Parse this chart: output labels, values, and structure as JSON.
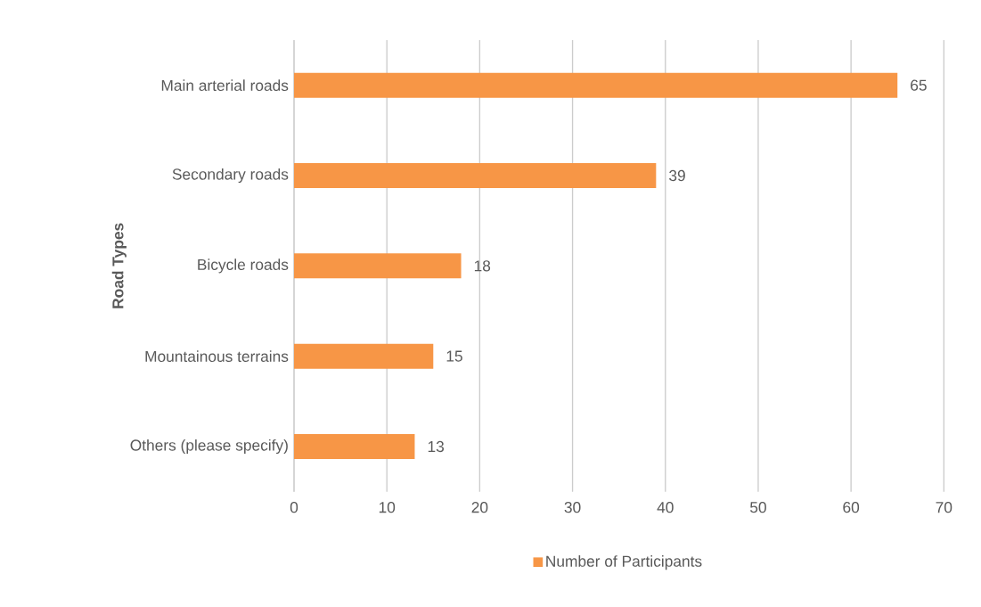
{
  "chart_data": {
    "type": "bar",
    "orientation": "horizontal",
    "ylabel": "Road Types",
    "categories": [
      "Main arterial roads",
      "Secondary roads",
      "Bicycle roads",
      "Mountainous terrains",
      "Others (please specify)"
    ],
    "series": [
      {
        "name": "Number of Participants",
        "color": "#f79646",
        "values": [
          65,
          39,
          18,
          15,
          13
        ]
      }
    ],
    "xlim": [
      0,
      70
    ],
    "xticks": [
      0,
      10,
      20,
      30,
      40,
      50,
      60,
      70
    ],
    "grid": "x",
    "legend": "bottom",
    "data_labels": true
  }
}
